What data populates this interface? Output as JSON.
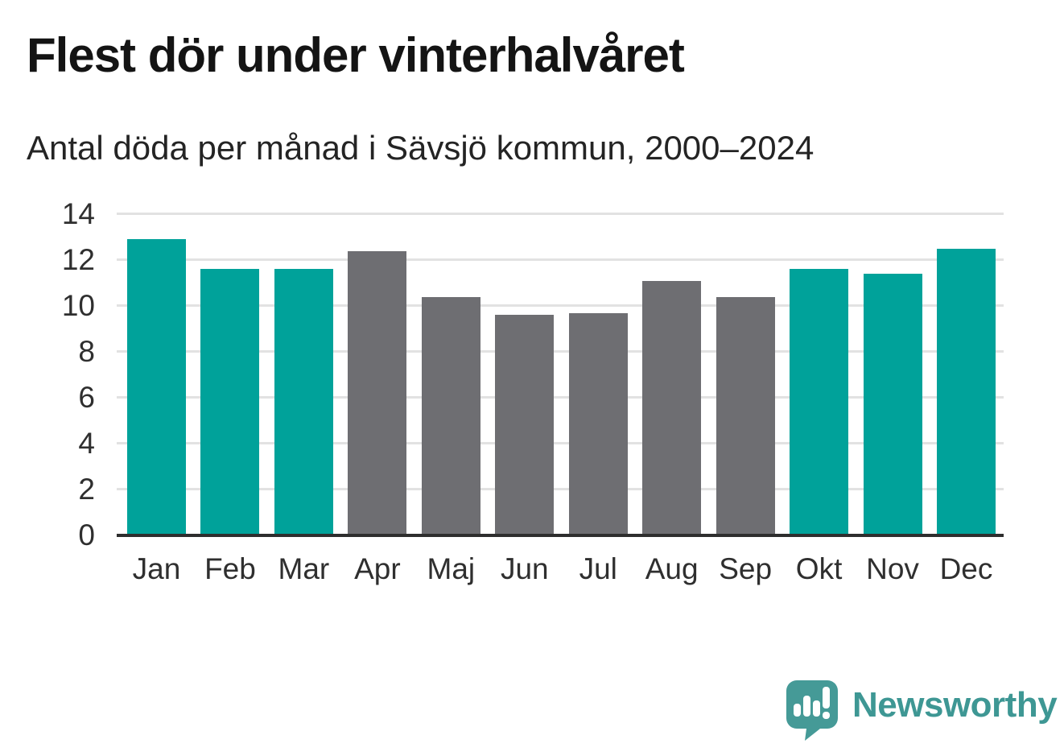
{
  "chart_data": {
    "type": "bar",
    "title": "Flest dör under vinterhalvåret",
    "subtitle": "Antal döda per månad i Sävsjö kommun, 2000–2024",
    "categories": [
      "Jan",
      "Feb",
      "Mar",
      "Apr",
      "Maj",
      "Jun",
      "Jul",
      "Aug",
      "Sep",
      "Okt",
      "Nov",
      "Dec"
    ],
    "values": [
      12.9,
      11.6,
      11.6,
      12.4,
      10.4,
      9.6,
      9.7,
      11.1,
      10.4,
      11.6,
      11.4,
      12.5
    ],
    "bar_colors": [
      "#00a29a",
      "#00a29a",
      "#00a29a",
      "#6e6e72",
      "#6e6e72",
      "#6e6e72",
      "#6e6e72",
      "#6e6e72",
      "#6e6e72",
      "#00a29a",
      "#00a29a",
      "#00a29a"
    ],
    "ylim": [
      0,
      14
    ],
    "yticks": [
      0,
      2,
      4,
      6,
      8,
      10,
      12,
      14
    ],
    "xlabel": "",
    "ylabel": "",
    "grid": "horizontal",
    "legend": "none",
    "colors": {
      "highlight": "#00a29a",
      "base": "#6e6e72",
      "gridline": "#e2e2e2",
      "axis_line": "#2e2e2e",
      "tick_text": "#2f2f2f",
      "title_text": "#141414"
    }
  },
  "footer": {
    "logo_text": "Newsworthy",
    "logo_color": "#3e9794"
  }
}
